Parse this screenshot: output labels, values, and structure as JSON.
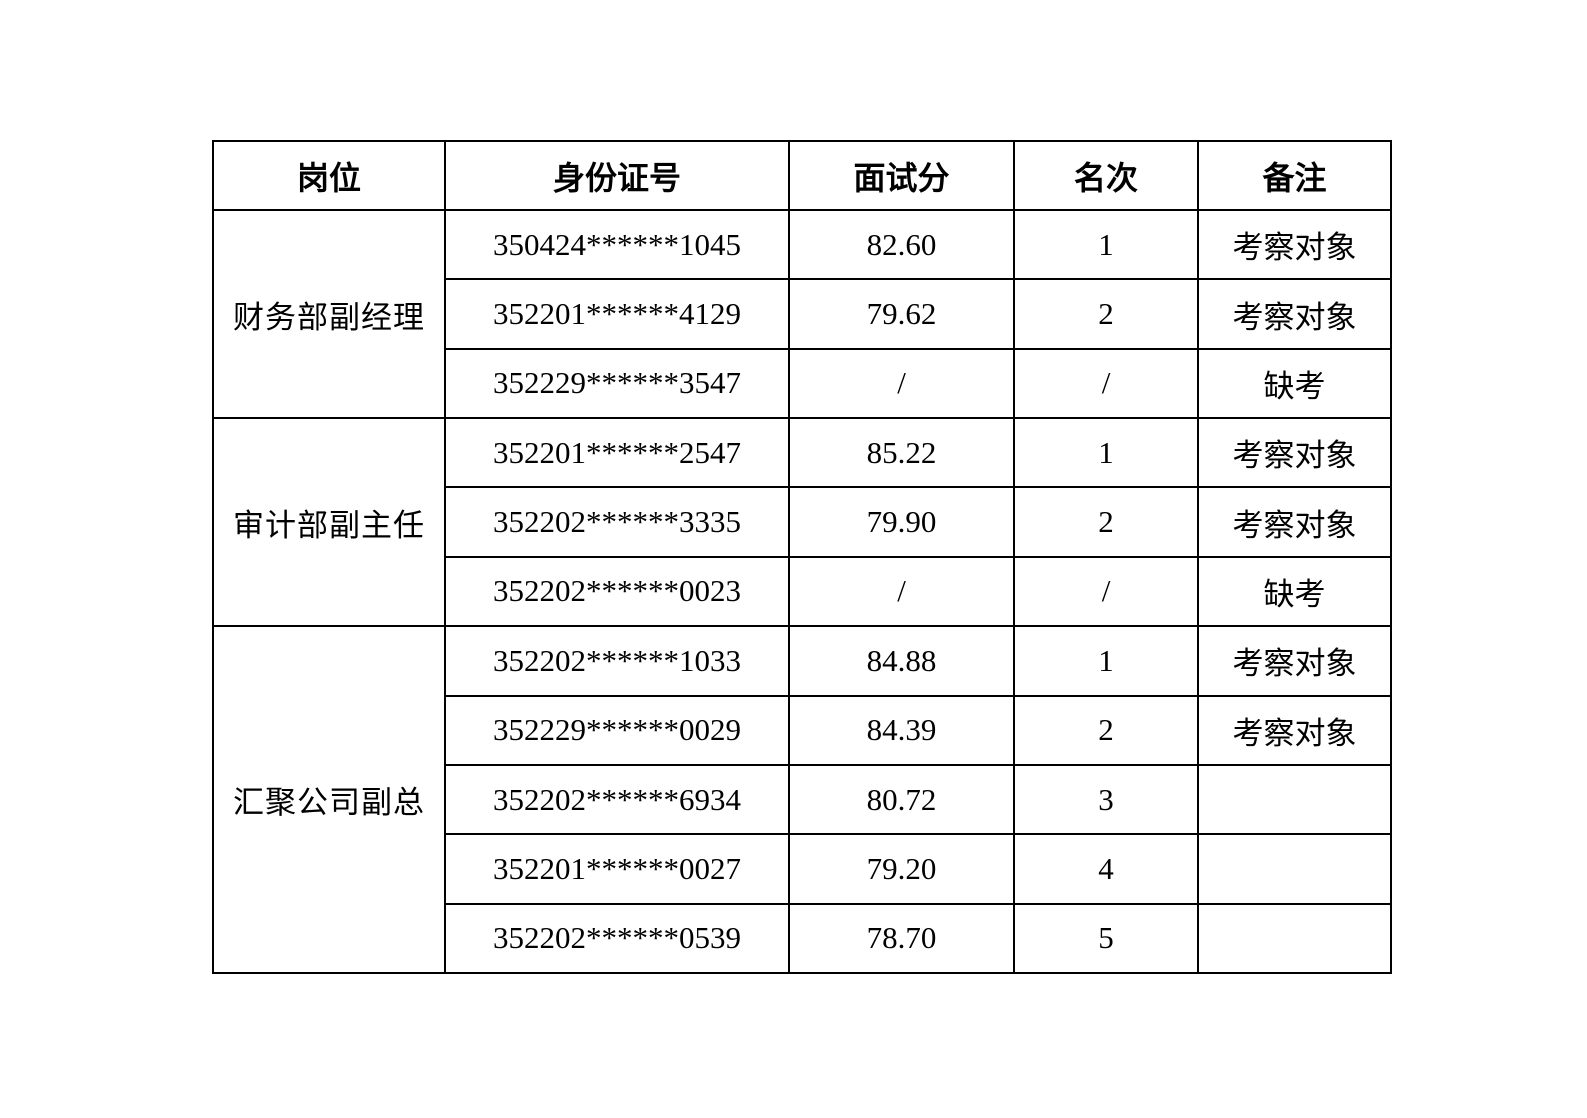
{
  "colors": {
    "background": "#ffffff",
    "border": "#000000",
    "text": "#000000"
  },
  "table": {
    "headers": [
      "岗位",
      "身份证号",
      "面试分",
      "名次",
      "备注"
    ],
    "groups": [
      {
        "position": "财务部副经理",
        "rows": [
          {
            "id": "350424******1045",
            "score": "82.60",
            "rank": "1",
            "remark": "考察对象"
          },
          {
            "id": "352201******4129",
            "score": "79.62",
            "rank": "2",
            "remark": "考察对象"
          },
          {
            "id": "352229******3547",
            "score": "/",
            "rank": "/",
            "remark": "缺考"
          }
        ]
      },
      {
        "position": "审计部副主任",
        "rows": [
          {
            "id": "352201******2547",
            "score": "85.22",
            "rank": "1",
            "remark": "考察对象"
          },
          {
            "id": "352202******3335",
            "score": "79.90",
            "rank": "2",
            "remark": "考察对象"
          },
          {
            "id": "352202******0023",
            "score": "/",
            "rank": "/",
            "remark": "缺考"
          }
        ]
      },
      {
        "position": "汇聚公司副总",
        "rows": [
          {
            "id": "352202******1033",
            "score": "84.88",
            "rank": "1",
            "remark": "考察对象"
          },
          {
            "id": "352229******0029",
            "score": "84.39",
            "rank": "2",
            "remark": "考察对象"
          },
          {
            "id": "352202******6934",
            "score": "80.72",
            "rank": "3",
            "remark": ""
          },
          {
            "id": "352201******0027",
            "score": "79.20",
            "rank": "4",
            "remark": ""
          },
          {
            "id": "352202******0539",
            "score": "78.70",
            "rank": "5",
            "remark": ""
          }
        ]
      }
    ]
  }
}
